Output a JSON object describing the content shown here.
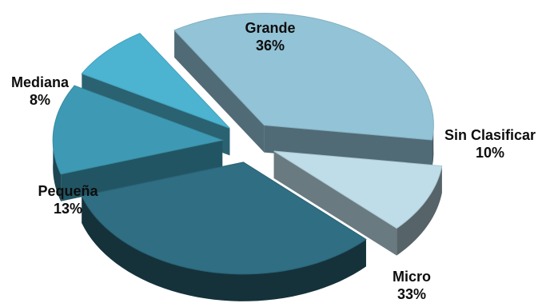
{
  "chart_data": {
    "type": "pie",
    "style": "3d-exploded",
    "slices": [
      {
        "label": "Grande",
        "value": 36,
        "display": "36%",
        "color": "#93c3d6"
      },
      {
        "label": "Sin Clasificar",
        "value": 10,
        "display": "10%",
        "color": "#bfdde8"
      },
      {
        "label": "Micro",
        "value": 33,
        "display": "33%",
        "color": "#2f6e83"
      },
      {
        "label": "Pequeña",
        "value": 13,
        "display": "13%",
        "color": "#3e9ab4"
      },
      {
        "label": "Mediana",
        "value": 8,
        "display": "8%",
        "color": "#4cb3d0"
      }
    ]
  }
}
